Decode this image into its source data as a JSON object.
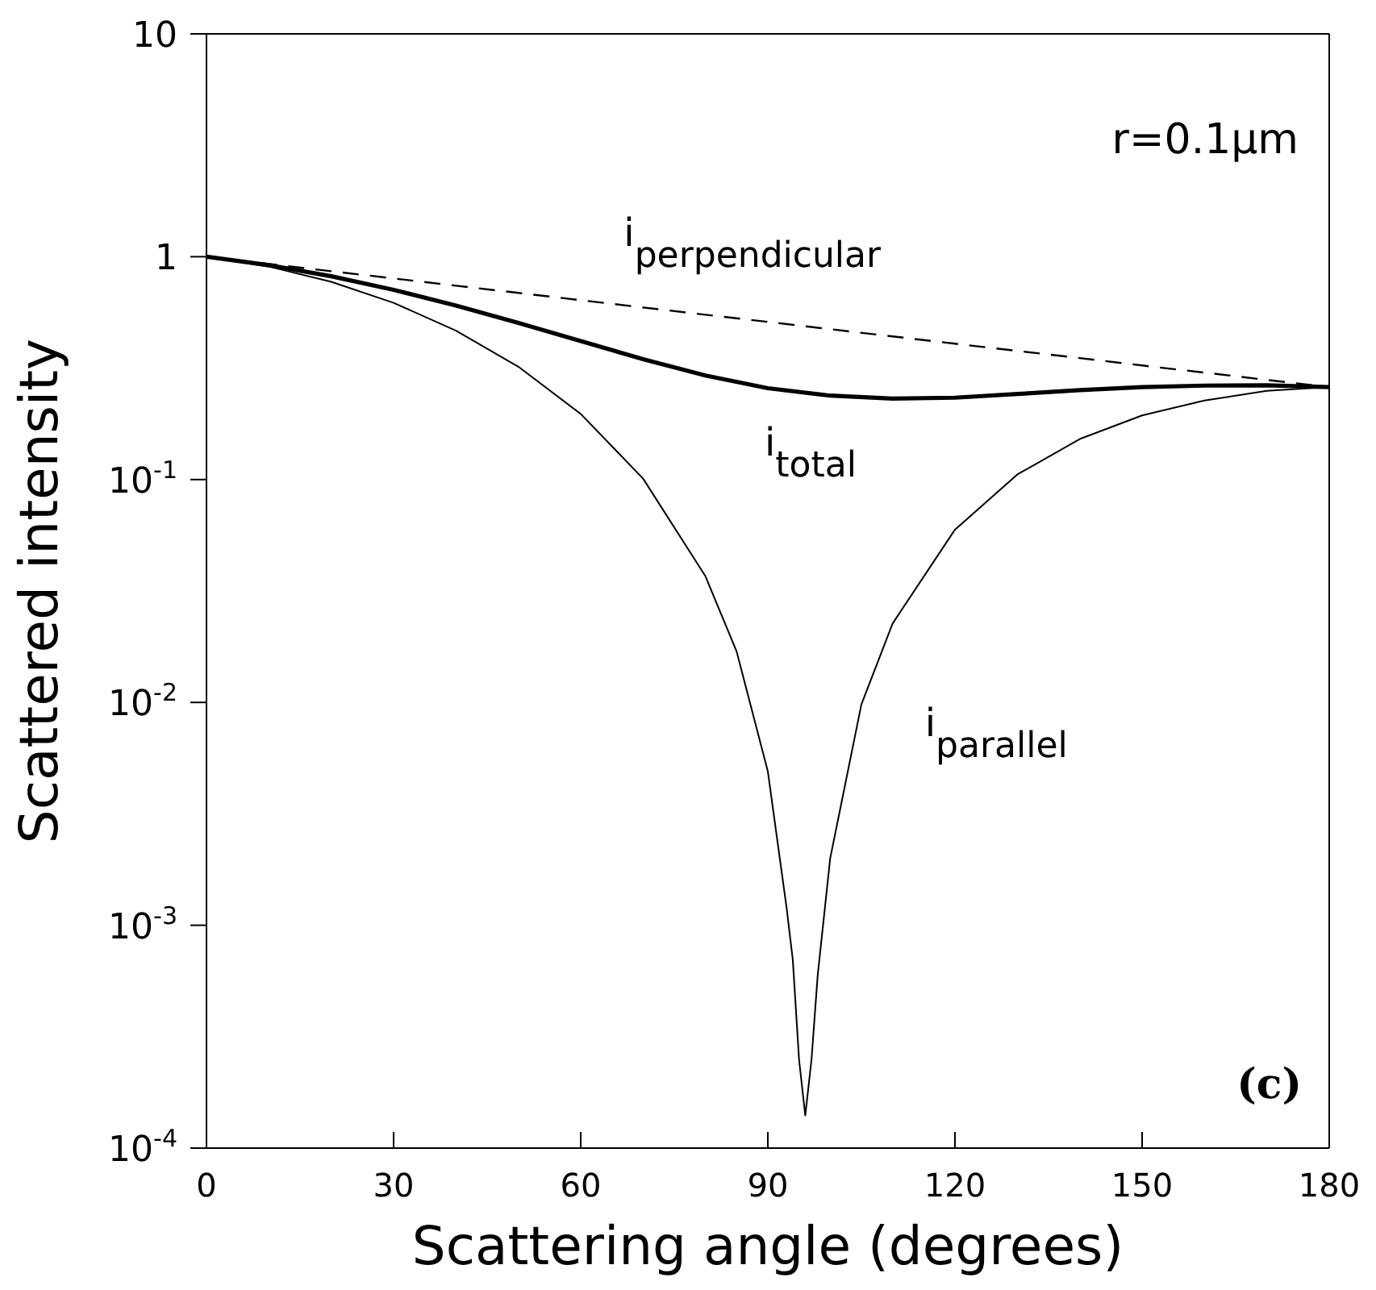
{
  "chart_data": {
    "type": "line",
    "xlabel": "Scattering angle (degrees)",
    "ylabel": "Scattered intensity",
    "log": "y",
    "marker": "none",
    "xlim": [
      0,
      180
    ],
    "xticks": [
      0,
      30,
      60,
      90,
      120,
      150,
      180
    ],
    "ylim": [
      0.0001,
      10
    ],
    "yticks": [
      {
        "value": 0.0001,
        "label": "10$^{-4}$"
      },
      {
        "value": 0.001,
        "label": "10$^{-3}$"
      },
      {
        "value": 0.01,
        "label": "10$^{-2}$"
      },
      {
        "value": 0.1,
        "label": "10$^{-1}$"
      },
      {
        "value": 1,
        "label": "1"
      },
      {
        "value": 10,
        "label": "10"
      }
    ],
    "series": [
      {
        "name": "i$_{perpendicular}$",
        "color": "#000000",
        "line_style": "dashed",
        "x": [
          0,
          10,
          20,
          30,
          40,
          50,
          60,
          70,
          80,
          90,
          100,
          110,
          120,
          130,
          140,
          150,
          160,
          170,
          180
        ],
        "values": [
          1,
          0.928,
          0.861,
          0.799,
          0.741,
          0.688,
          0.638,
          0.592,
          0.549,
          0.51,
          0.473,
          0.439,
          0.407,
          0.378,
          0.351,
          0.325,
          0.302,
          0.28,
          0.26
        ]
      },
      {
        "name": "i$_{total}$",
        "color": "#000000",
        "line_style": "solid",
        "x": [
          0,
          10,
          20,
          30,
          40,
          50,
          60,
          70,
          80,
          90,
          100,
          110,
          120,
          130,
          140,
          150,
          160,
          170,
          180
        ],
        "values": [
          1,
          0.916,
          0.817,
          0.71,
          0.604,
          0.505,
          0.418,
          0.347,
          0.293,
          0.257,
          0.238,
          0.231,
          0.233,
          0.242,
          0.252,
          0.26,
          0.264,
          0.265,
          0.26
        ]
      },
      {
        "name": "i$_{parallel}$",
        "color": "#000000",
        "line_style": "solid",
        "x": [
          0,
          10,
          20,
          30,
          40,
          50,
          60,
          70,
          80,
          85,
          90,
          93,
          94,
          95,
          96,
          97,
          98,
          100,
          105,
          110,
          120,
          130,
          140,
          150,
          160,
          170,
          180
        ],
        "values": [
          1,
          0.903,
          0.772,
          0.621,
          0.466,
          0.321,
          0.197,
          0.101,
          0.0368,
          0.0169,
          0.0049,
          0.0012,
          0.0007,
          0.00025,
          0.00014,
          0.00025,
          0.0006,
          0.002,
          0.0098,
          0.0226,
          0.0596,
          0.1054,
          0.152,
          0.194,
          0.2265,
          0.25,
          0.26
        ]
      }
    ],
    "annotations": [
      "r=0.1µm",
      "(c)"
    ]
  }
}
